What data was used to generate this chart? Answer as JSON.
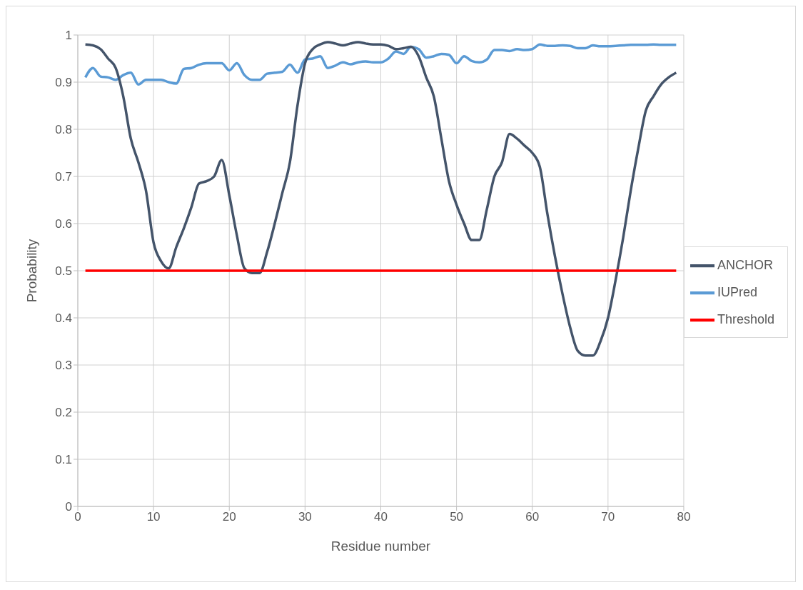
{
  "chart_data": {
    "type": "line",
    "xlabel": "Residue number",
    "ylabel": "Probability",
    "x": [
      1,
      2,
      3,
      4,
      5,
      6,
      7,
      8,
      9,
      10,
      11,
      12,
      13,
      14,
      15,
      16,
      17,
      18,
      19,
      20,
      21,
      22,
      23,
      24,
      25,
      26,
      27,
      28,
      29,
      30,
      31,
      32,
      33,
      34,
      35,
      36,
      37,
      38,
      39,
      40,
      41,
      42,
      43,
      44,
      45,
      46,
      47,
      48,
      49,
      50,
      51,
      52,
      53,
      54,
      55,
      56,
      57,
      58,
      59,
      60,
      61,
      62,
      63,
      64,
      65,
      66,
      67,
      68,
      69,
      70,
      71,
      72,
      73,
      74,
      75,
      76,
      77,
      78,
      79
    ],
    "series": [
      {
        "name": "IUPred",
        "color": "#5b9bd5",
        "values": [
          0.91,
          0.93,
          0.912,
          0.91,
          0.905,
          0.915,
          0.92,
          0.895,
          0.905,
          0.905,
          0.905,
          0.9,
          0.897,
          0.928,
          0.93,
          0.937,
          0.94,
          0.94,
          0.94,
          0.925,
          0.94,
          0.915,
          0.905,
          0.905,
          0.918,
          0.92,
          0.922,
          0.937,
          0.92,
          0.948,
          0.95,
          0.955,
          0.93,
          0.935,
          0.942,
          0.938,
          0.942,
          0.944,
          0.942,
          0.942,
          0.95,
          0.965,
          0.96,
          0.975,
          0.97,
          0.952,
          0.955,
          0.96,
          0.958,
          0.94,
          0.955,
          0.945,
          0.942,
          0.948,
          0.968,
          0.968,
          0.966,
          0.97,
          0.968,
          0.97,
          0.98,
          0.977,
          0.977,
          0.978,
          0.977,
          0.972,
          0.972,
          0.978,
          0.976,
          0.976,
          0.977,
          0.978,
          0.979,
          0.979,
          0.979,
          0.98,
          0.979,
          0.979,
          0.979
        ]
      },
      {
        "name": "ANCHOR",
        "color": "#44546a",
        "values": [
          0.98,
          0.978,
          0.97,
          0.95,
          0.93,
          0.87,
          0.78,
          0.73,
          0.67,
          0.56,
          0.52,
          0.505,
          0.55,
          0.59,
          0.635,
          0.685,
          0.69,
          0.7,
          0.735,
          0.66,
          0.575,
          0.505,
          0.495,
          0.495,
          0.54,
          0.6,
          0.665,
          0.73,
          0.85,
          0.94,
          0.97,
          0.98,
          0.985,
          0.982,
          0.978,
          0.982,
          0.985,
          0.982,
          0.98,
          0.98,
          0.977,
          0.97,
          0.972,
          0.975,
          0.955,
          0.91,
          0.87,
          0.78,
          0.69,
          0.64,
          0.6,
          0.565,
          0.565,
          0.63,
          0.7,
          0.73,
          0.79,
          0.78,
          0.765,
          0.75,
          0.72,
          0.62,
          0.53,
          0.45,
          0.38,
          0.33,
          0.32,
          0.32,
          0.35,
          0.4,
          0.48,
          0.57,
          0.67,
          0.76,
          0.84,
          0.87,
          0.895,
          0.91,
          0.92
        ]
      },
      {
        "name": "Threshold",
        "color": "#ff0000",
        "x": [
          1,
          79
        ],
        "values": [
          0.5,
          0.5
        ]
      }
    ],
    "xlim": [
      0,
      80
    ],
    "xticks": [
      0,
      10,
      20,
      30,
      40,
      50,
      60,
      70,
      80
    ],
    "ylim": [
      0,
      1
    ],
    "yticks": [
      0,
      0.1,
      0.2,
      0.3,
      0.4,
      0.5,
      0.6,
      0.7,
      0.8,
      0.9,
      1
    ],
    "grid": true,
    "legend": "right",
    "marker": "none",
    "line_style": "solid"
  }
}
